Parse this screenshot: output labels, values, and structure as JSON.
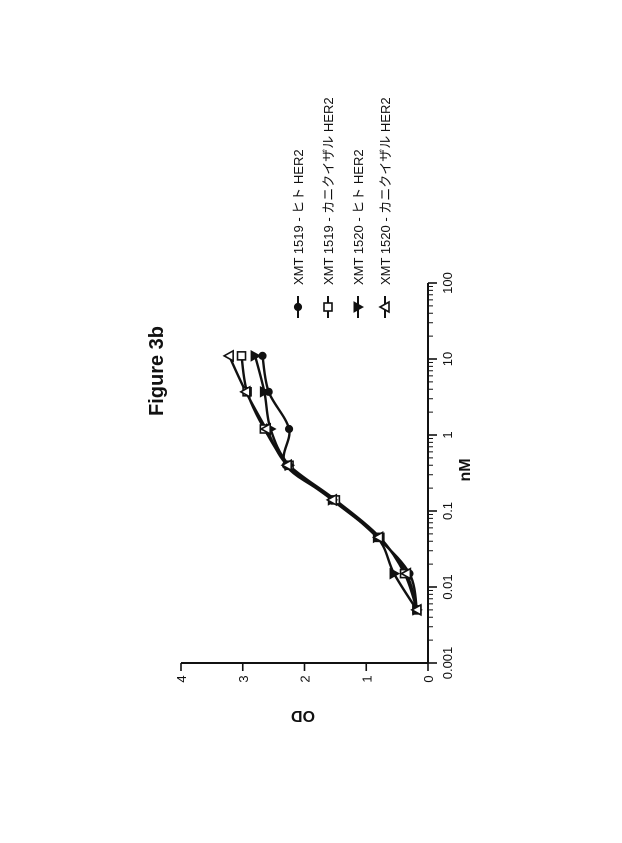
{
  "chart_data": {
    "type": "scatter",
    "title": "Figure 3b",
    "xlabel": "nM",
    "ylabel": "OD",
    "x_scale": "log",
    "xlim": [
      0.001,
      100
    ],
    "ylim": [
      0,
      4
    ],
    "x_ticks": [
      "0.001",
      "0.01",
      "0.1",
      "1",
      "10",
      "100"
    ],
    "y_ticks": [
      "0",
      "1",
      "2",
      "3",
      "4"
    ],
    "legend_placement": "right",
    "series": [
      {
        "name": "XMT 1519 - ヒト HER2",
        "marker": "filled-circle",
        "x": [
          0.005,
          0.015,
          0.045,
          0.14,
          0.4,
          1.2,
          3.7,
          11
        ],
        "y": [
          0.18,
          0.3,
          0.82,
          1.52,
          2.3,
          2.25,
          2.58,
          2.68
        ]
      },
      {
        "name": "XMT 1519 - カニクイザル HER2",
        "marker": "open-square",
        "x": [
          0.005,
          0.015,
          0.045,
          0.14,
          0.4,
          1.2,
          3.7,
          11
        ],
        "y": [
          0.18,
          0.38,
          0.78,
          1.5,
          2.25,
          2.65,
          2.93,
          3.02
        ]
      },
      {
        "name": "XMT 1520 - ヒト HER2",
        "marker": "filled-triangle",
        "x": [
          0.005,
          0.015,
          0.045,
          0.14,
          0.4,
          1.2,
          3.7,
          11
        ],
        "y": [
          0.18,
          0.55,
          0.82,
          1.55,
          2.25,
          2.55,
          2.65,
          2.8
        ]
      },
      {
        "name": "XMT 1520 - カニクイザル HER2",
        "marker": "open-triangle-down",
        "x": [
          0.005,
          0.015,
          0.045,
          0.14,
          0.4,
          1.2,
          3.7,
          11
        ],
        "y": [
          0.18,
          0.35,
          0.8,
          1.55,
          2.28,
          2.62,
          2.95,
          3.22
        ]
      }
    ]
  }
}
